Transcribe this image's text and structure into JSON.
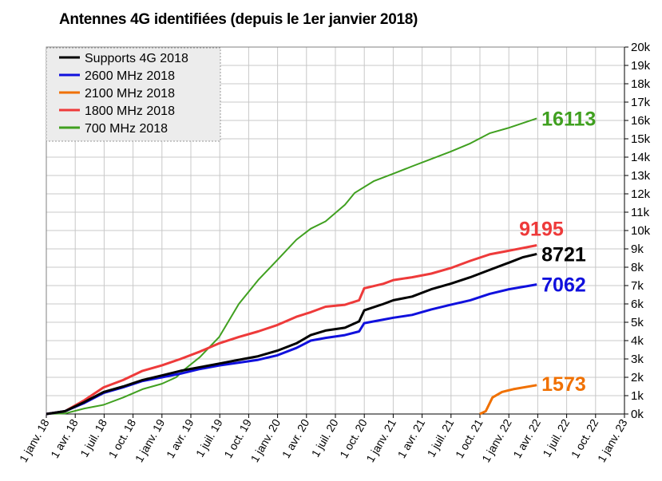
{
  "chart_data": {
    "type": "line",
    "title": "Antennes 4G identifiées (depuis le 1er janvier 2018)",
    "xlabel": "",
    "ylabel": "",
    "ylim": [
      0,
      20000
    ],
    "y_ticks": [
      "0k",
      "1k",
      "2k",
      "3k",
      "4k",
      "5k",
      "6k",
      "7k",
      "8k",
      "9k",
      "10k",
      "11k",
      "12k",
      "13k",
      "14k",
      "15k",
      "16k",
      "17k",
      "18k",
      "19k",
      "20k"
    ],
    "x_ticks": [
      "1 janv. 18",
      "1 avr. 18",
      "1 juil. 18",
      "1 oct. 18",
      "1 janv. 19",
      "1 avr. 19",
      "1 juil. 19",
      "1 oct. 19",
      "1 janv. 20",
      "1 avr. 20",
      "1 juil. 20",
      "1 oct. 20",
      "1 janv. 21",
      "1 avr. 21",
      "1 juil. 21",
      "1 oct. 21",
      "1 janv. 22",
      "1 avr. 22",
      "1 juil. 22",
      "1 oct. 22",
      "1 janv. 23"
    ],
    "x_range": [
      "2018-01-01",
      "2023-01-01"
    ],
    "grid": true,
    "y_axis_side": "right",
    "legend_position": "top-left",
    "series": [
      {
        "name": "Supports 4G 2018",
        "color": "#000000",
        "end_label": "8721",
        "points": [
          [
            "2018-01-01",
            0
          ],
          [
            "2018-03-01",
            150
          ],
          [
            "2018-05-01",
            650
          ],
          [
            "2018-07-01",
            1200
          ],
          [
            "2018-09-01",
            1500
          ],
          [
            "2018-11-01",
            1850
          ],
          [
            "2019-01-01",
            2100
          ],
          [
            "2019-03-01",
            2350
          ],
          [
            "2019-05-01",
            2550
          ],
          [
            "2019-07-01",
            2750
          ],
          [
            "2019-09-01",
            2950
          ],
          [
            "2019-11-01",
            3150
          ],
          [
            "2020-01-01",
            3450
          ],
          [
            "2020-03-01",
            3850
          ],
          [
            "2020-04-15",
            4300
          ],
          [
            "2020-06-01",
            4550
          ],
          [
            "2020-08-01",
            4700
          ],
          [
            "2020-09-15",
            5050
          ],
          [
            "2020-10-01",
            5650
          ],
          [
            "2020-12-01",
            6000
          ],
          [
            "2021-01-01",
            6200
          ],
          [
            "2021-03-01",
            6400
          ],
          [
            "2021-05-01",
            6800
          ],
          [
            "2021-07-01",
            7100
          ],
          [
            "2021-09-01",
            7450
          ],
          [
            "2021-11-01",
            7850
          ],
          [
            "2022-01-01",
            8250
          ],
          [
            "2022-02-15",
            8550
          ],
          [
            "2022-03-30",
            8721
          ]
        ]
      },
      {
        "name": "2600 MHz 2018",
        "color": "#1010dd",
        "end_label": "7062",
        "points": [
          [
            "2018-01-01",
            0
          ],
          [
            "2018-03-01",
            150
          ],
          [
            "2018-05-01",
            600
          ],
          [
            "2018-07-01",
            1150
          ],
          [
            "2018-09-01",
            1450
          ],
          [
            "2018-11-01",
            1800
          ],
          [
            "2019-01-01",
            2000
          ],
          [
            "2019-03-01",
            2200
          ],
          [
            "2019-05-01",
            2450
          ],
          [
            "2019-07-01",
            2650
          ],
          [
            "2019-09-01",
            2800
          ],
          [
            "2019-11-01",
            2950
          ],
          [
            "2020-01-01",
            3200
          ],
          [
            "2020-03-01",
            3600
          ],
          [
            "2020-04-15",
            4000
          ],
          [
            "2020-06-01",
            4150
          ],
          [
            "2020-08-01",
            4300
          ],
          [
            "2020-09-15",
            4500
          ],
          [
            "2020-10-01",
            4950
          ],
          [
            "2020-12-01",
            5150
          ],
          [
            "2021-01-01",
            5250
          ],
          [
            "2021-03-01",
            5400
          ],
          [
            "2021-05-01",
            5700
          ],
          [
            "2021-07-01",
            5950
          ],
          [
            "2021-09-01",
            6200
          ],
          [
            "2021-11-01",
            6550
          ],
          [
            "2022-01-01",
            6800
          ],
          [
            "2022-03-30",
            7062
          ]
        ]
      },
      {
        "name": "2100 MHz 2018",
        "color": "#f07000",
        "end_label": "1573",
        "points": [
          [
            "2021-10-01",
            0
          ],
          [
            "2021-10-20",
            150
          ],
          [
            "2021-11-10",
            900
          ],
          [
            "2021-12-10",
            1200
          ],
          [
            "2022-01-15",
            1350
          ],
          [
            "2022-03-30",
            1573
          ]
        ]
      },
      {
        "name": "1800 MHz 2018",
        "color": "#ee3a3a",
        "end_label": "9195",
        "points": [
          [
            "2018-01-01",
            0
          ],
          [
            "2018-03-01",
            150
          ],
          [
            "2018-05-01",
            750
          ],
          [
            "2018-07-01",
            1450
          ],
          [
            "2018-09-01",
            1850
          ],
          [
            "2018-11-01",
            2350
          ],
          [
            "2019-01-01",
            2650
          ],
          [
            "2019-03-01",
            3000
          ],
          [
            "2019-05-01",
            3400
          ],
          [
            "2019-07-01",
            3850
          ],
          [
            "2019-09-01",
            4200
          ],
          [
            "2019-11-01",
            4500
          ],
          [
            "2020-01-01",
            4850
          ],
          [
            "2020-03-01",
            5300
          ],
          [
            "2020-04-15",
            5550
          ],
          [
            "2020-06-01",
            5850
          ],
          [
            "2020-08-01",
            5950
          ],
          [
            "2020-09-15",
            6200
          ],
          [
            "2020-10-01",
            6850
          ],
          [
            "2020-12-01",
            7100
          ],
          [
            "2021-01-01",
            7300
          ],
          [
            "2021-03-01",
            7450
          ],
          [
            "2021-05-01",
            7650
          ],
          [
            "2021-07-01",
            7950
          ],
          [
            "2021-09-01",
            8350
          ],
          [
            "2021-11-01",
            8700
          ],
          [
            "2022-01-01",
            8900
          ],
          [
            "2022-03-30",
            9195
          ]
        ]
      },
      {
        "name": "700 MHz 2018",
        "color": "#40a020",
        "end_label": "16113",
        "points": [
          [
            "2018-01-01",
            0
          ],
          [
            "2018-03-01",
            30
          ],
          [
            "2018-05-01",
            300
          ],
          [
            "2018-07-01",
            500
          ],
          [
            "2018-09-01",
            900
          ],
          [
            "2018-11-01",
            1350
          ],
          [
            "2019-01-01",
            1650
          ],
          [
            "2019-02-15",
            2000
          ],
          [
            "2019-03-15",
            2450
          ],
          [
            "2019-05-01",
            3100
          ],
          [
            "2019-07-01",
            4200
          ],
          [
            "2019-09-01",
            6000
          ],
          [
            "2019-11-01",
            7300
          ],
          [
            "2020-01-01",
            8400
          ],
          [
            "2020-03-01",
            9500
          ],
          [
            "2020-04-15",
            10100
          ],
          [
            "2020-06-01",
            10500
          ],
          [
            "2020-08-01",
            11400
          ],
          [
            "2020-09-01",
            12050
          ],
          [
            "2020-11-01",
            12700
          ],
          [
            "2021-01-01",
            13100
          ],
          [
            "2021-03-01",
            13500
          ],
          [
            "2021-05-01",
            13900
          ],
          [
            "2021-07-01",
            14300
          ],
          [
            "2021-09-01",
            14750
          ],
          [
            "2021-11-01",
            15300
          ],
          [
            "2022-01-01",
            15600
          ],
          [
            "2022-03-30",
            16113
          ]
        ]
      }
    ]
  }
}
